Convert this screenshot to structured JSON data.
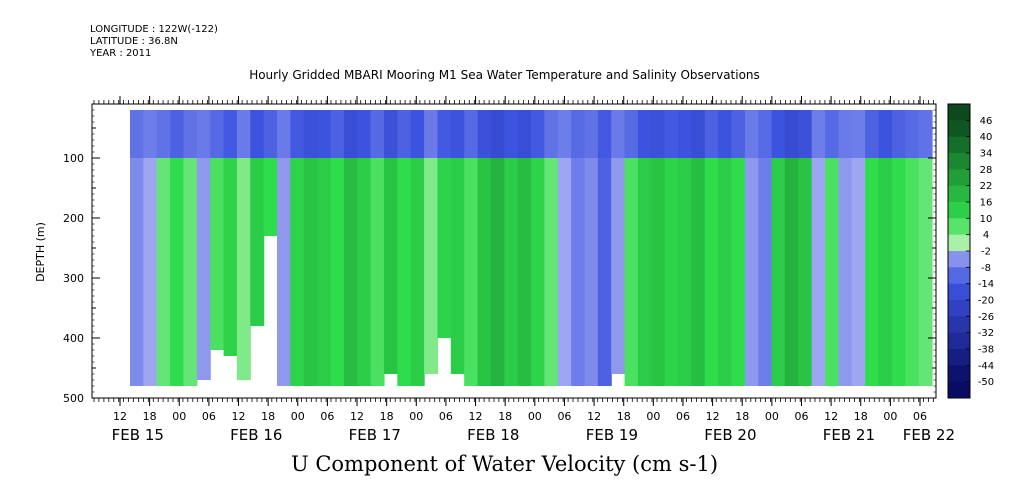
{
  "header": {
    "longitude": "LONGITUDE : 122W(-122)",
    "latitude": "LATITUDE : 36.8N",
    "year": "YEAR : 2011"
  },
  "chart_data": {
    "type": "heatmap",
    "title": "Hourly Gridded MBARI Mooring M1 Sea Water Temperature and Salinity Observations",
    "xlabel": "U Component of Water Velocity (cm s-1)",
    "ylabel": "DEPTH (m)",
    "x_tick_labels": [
      "12",
      "18",
      "00",
      "06",
      "12",
      "18",
      "00",
      "06",
      "12",
      "18",
      "00",
      "06",
      "12",
      "18",
      "00",
      "06",
      "12",
      "18",
      "00",
      "06",
      "12",
      "18",
      "00",
      "06",
      "12",
      "18",
      "00",
      "06"
    ],
    "x_day_labels": [
      "FEB 15",
      "FEB 16",
      "FEB 17",
      "FEB 18",
      "FEB 19",
      "FEB 20",
      "FEB 21",
      "FEB 22"
    ],
    "y_ticks": [
      100,
      200,
      300,
      400,
      500
    ],
    "ylim": [
      500,
      10
    ],
    "colorbar_levels": [
      46,
      40,
      34,
      28,
      22,
      16,
      10,
      4,
      -2,
      -8,
      -14,
      -20,
      -26,
      -32,
      -38,
      -44,
      -50
    ],
    "colors": {
      "strong_positive": "#0c4a1e",
      "positive": "#2fdc4c",
      "weak_positive": "#b6f2b2",
      "weak_negative": "#aeb4f4",
      "negative": "#3d54e0",
      "strong_negative": "#0a0c64"
    },
    "surface_band_m": [
      20,
      100
    ],
    "columns": [
      {
        "v": -6,
        "d": 480
      },
      {
        "v": -2,
        "d": 480
      },
      {
        "v": 6,
        "d": 480
      },
      {
        "v": 10,
        "d": 480
      },
      {
        "v": 6,
        "d": 480
      },
      {
        "v": -4,
        "d": 470
      },
      {
        "v": 8,
        "d": 420
      },
      {
        "v": 12,
        "d": 430
      },
      {
        "v": 4,
        "d": 470
      },
      {
        "v": 14,
        "d": 380
      },
      {
        "v": 10,
        "d": 230
      },
      {
        "v": -4,
        "d": 480
      },
      {
        "v": 12,
        "d": 480
      },
      {
        "v": 16,
        "d": 480
      },
      {
        "v": 14,
        "d": 480
      },
      {
        "v": 10,
        "d": 480
      },
      {
        "v": 18,
        "d": 480
      },
      {
        "v": 14,
        "d": 480
      },
      {
        "v": 8,
        "d": 480
      },
      {
        "v": 16,
        "d": 460
      },
      {
        "v": 10,
        "d": 480
      },
      {
        "v": 14,
        "d": 480
      },
      {
        "v": 4,
        "d": 460
      },
      {
        "v": 12,
        "d": 400
      },
      {
        "v": 14,
        "d": 460
      },
      {
        "v": 8,
        "d": 480
      },
      {
        "v": 16,
        "d": 480
      },
      {
        "v": 20,
        "d": 480
      },
      {
        "v": 14,
        "d": 480
      },
      {
        "v": 18,
        "d": 480
      },
      {
        "v": 12,
        "d": 480
      },
      {
        "v": 6,
        "d": 480
      },
      {
        "v": -2,
        "d": 480
      },
      {
        "v": -8,
        "d": 480
      },
      {
        "v": -6,
        "d": 480
      },
      {
        "v": -12,
        "d": 480
      },
      {
        "v": -4,
        "d": 460
      },
      {
        "v": 8,
        "d": 480
      },
      {
        "v": 14,
        "d": 480
      },
      {
        "v": 16,
        "d": 480
      },
      {
        "v": 12,
        "d": 480
      },
      {
        "v": 14,
        "d": 480
      },
      {
        "v": 18,
        "d": 480
      },
      {
        "v": 10,
        "d": 480
      },
      {
        "v": 14,
        "d": 480
      },
      {
        "v": 10,
        "d": 480
      },
      {
        "v": -4,
        "d": 480
      },
      {
        "v": -8,
        "d": 480
      },
      {
        "v": 14,
        "d": 480
      },
      {
        "v": 20,
        "d": 480
      },
      {
        "v": 16,
        "d": 480
      },
      {
        "v": -2,
        "d": 480
      },
      {
        "v": 8,
        "d": 480
      },
      {
        "v": -4,
        "d": 480
      },
      {
        "v": -2,
        "d": 480
      },
      {
        "v": 10,
        "d": 480
      },
      {
        "v": 14,
        "d": 480
      },
      {
        "v": 10,
        "d": 480
      },
      {
        "v": 8,
        "d": 480
      },
      {
        "v": 6,
        "d": 480
      }
    ]
  }
}
